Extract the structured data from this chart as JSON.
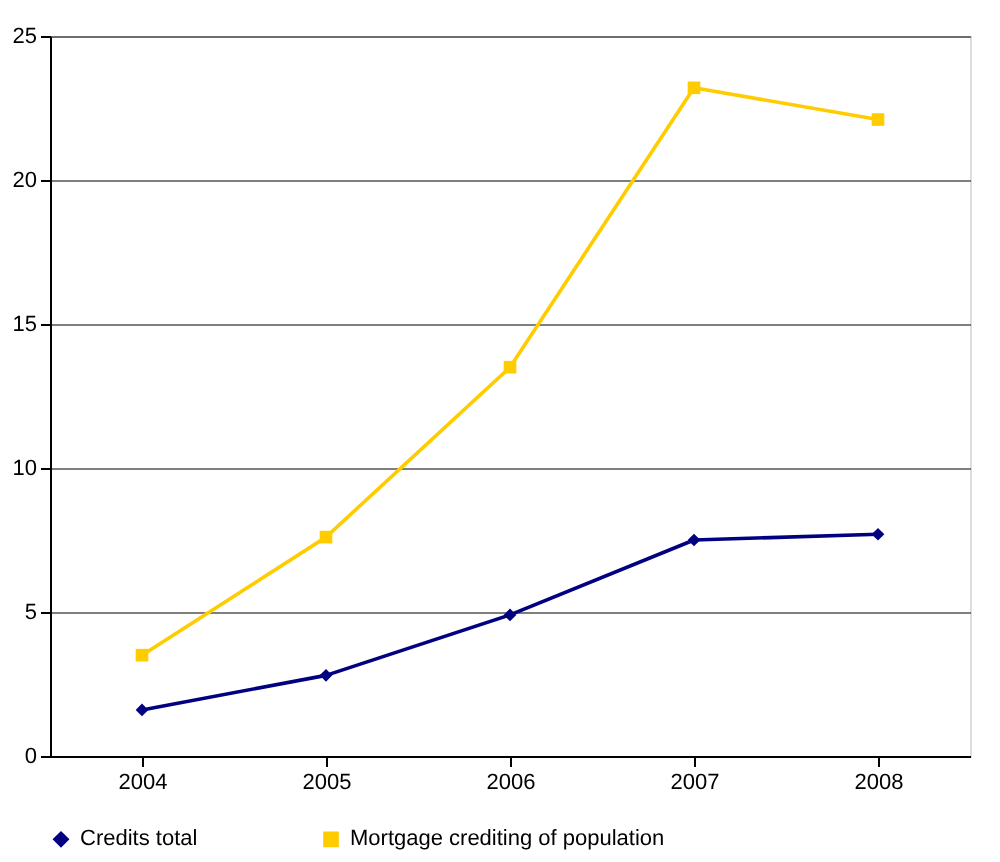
{
  "chart_data": {
    "type": "line",
    "categories": [
      "2004",
      "2005",
      "2006",
      "2007",
      "2008"
    ],
    "series": [
      {
        "name": "Credits total",
        "color": "#000080",
        "marker": "diamond",
        "values": [
          1.6,
          2.8,
          4.9,
          7.5,
          7.7
        ]
      },
      {
        "name": "Mortgage crediting of population",
        "color": "#ffcc00",
        "marker": "square",
        "values": [
          3.5,
          7.6,
          13.5,
          23.2,
          22.1
        ]
      }
    ],
    "ylim": [
      0,
      25
    ],
    "yticks": [
      0,
      5,
      10,
      15,
      20,
      25
    ],
    "grid": "y",
    "legend": "bottom",
    "line_style": "solid"
  }
}
